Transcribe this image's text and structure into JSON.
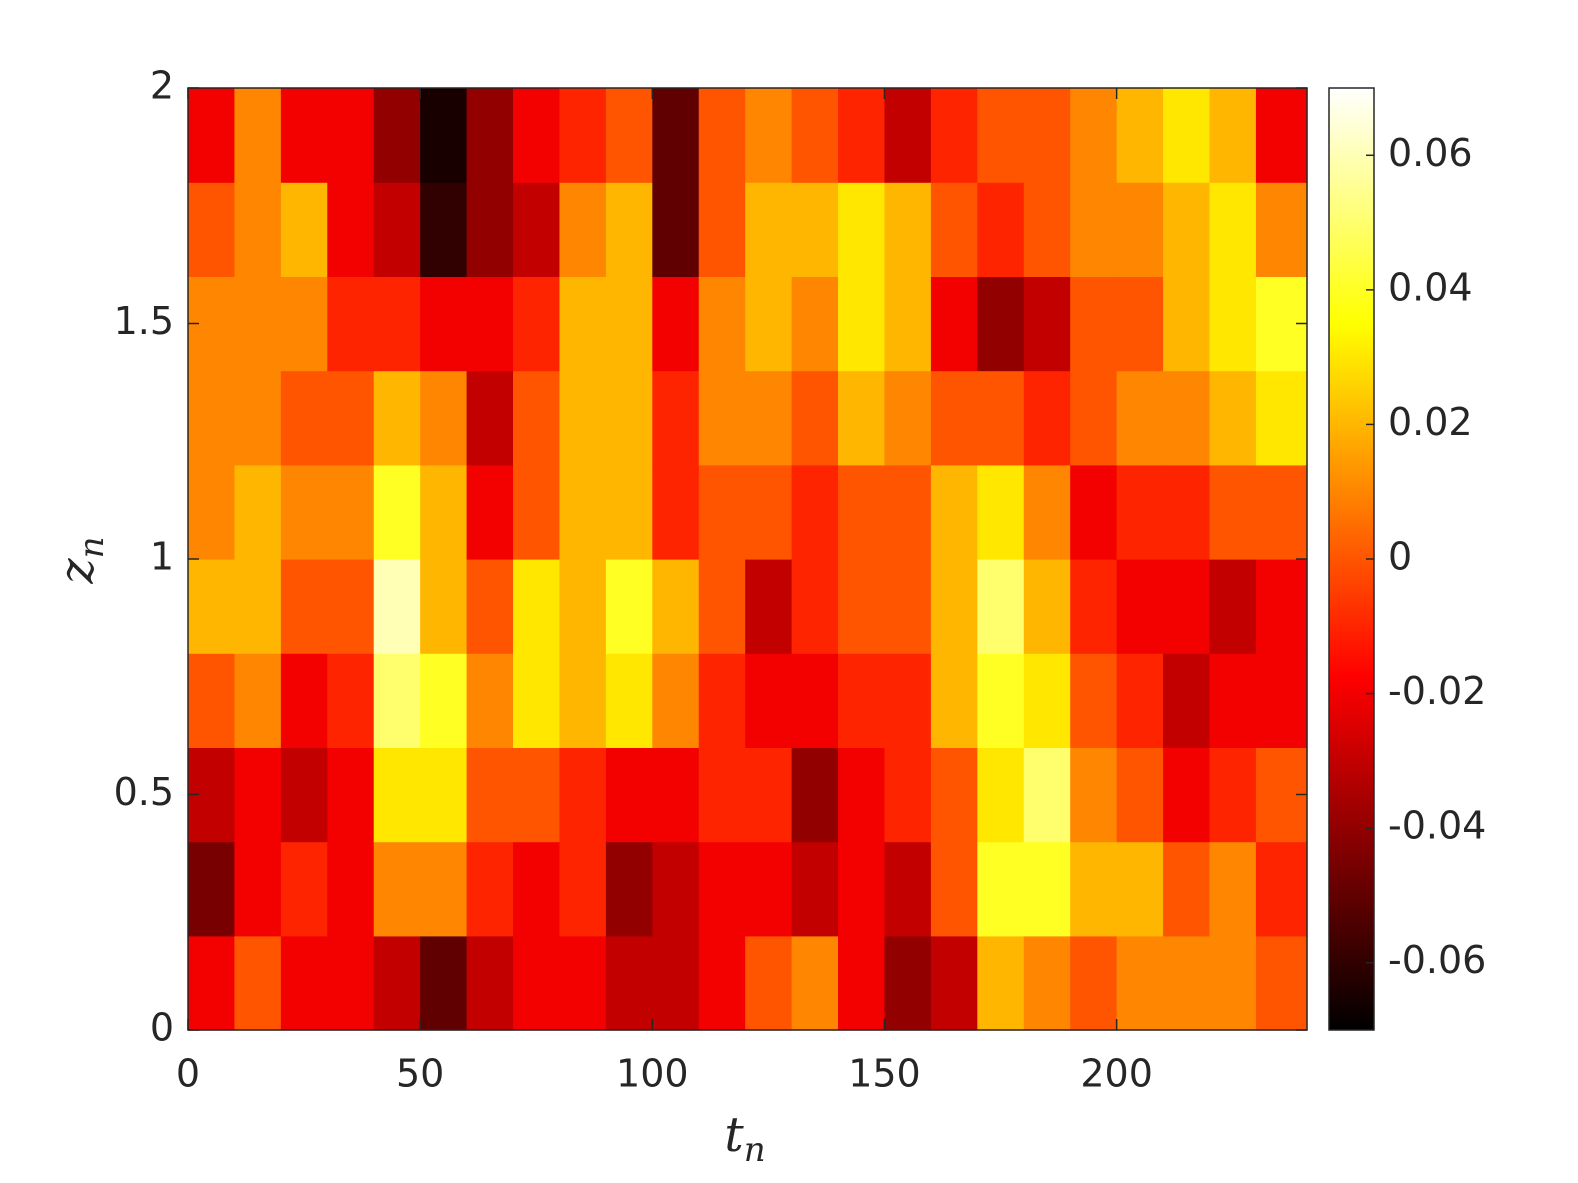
{
  "chart_data": {
    "type": "heatmap",
    "x_label": {
      "text": "t",
      "subscript": "n"
    },
    "y_label": {
      "text": "z",
      "subscript": "n"
    },
    "colormap": "hot",
    "x_bins": [
      0,
      10,
      20,
      30,
      40,
      50,
      60,
      70,
      80,
      90,
      100,
      110,
      120,
      130,
      140,
      150,
      160,
      170,
      180,
      190,
      200,
      210,
      220,
      230,
      241
    ],
    "y_bins": [
      0,
      0.2,
      0.4,
      0.6,
      0.8,
      1.0,
      1.2,
      1.4,
      1.6,
      1.8,
      2
    ],
    "values": [
      [
        -0.02,
        -0.045,
        -0.03,
        0.0,
        0.02,
        0.01,
        0.01,
        0.01,
        0.0,
        -0.02
      ],
      [
        0.0,
        -0.02,
        -0.02,
        0.01,
        0.02,
        0.02,
        0.01,
        0.01,
        0.01,
        0.01
      ],
      [
        -0.02,
        -0.01,
        -0.03,
        -0.02,
        0.0,
        0.01,
        0.0,
        0.01,
        0.02,
        -0.02
      ],
      [
        -0.02,
        -0.02,
        -0.02,
        -0.01,
        0.0,
        0.01,
        0.0,
        -0.01,
        -0.02,
        -0.02
      ],
      [
        -0.03,
        0.01,
        0.03,
        0.05,
        0.06,
        0.04,
        0.02,
        -0.01,
        -0.03,
        -0.04
      ],
      [
        -0.05,
        0.01,
        0.03,
        0.04,
        0.02,
        0.02,
        0.01,
        -0.02,
        -0.06,
        -0.065
      ],
      [
        -0.03,
        -0.01,
        0.0,
        0.01,
        0.0,
        -0.02,
        -0.03,
        -0.02,
        -0.04,
        -0.04
      ],
      [
        -0.02,
        -0.02,
        0.0,
        0.03,
        0.03,
        0.0,
        0.0,
        -0.01,
        -0.03,
        -0.02
      ],
      [
        -0.02,
        -0.01,
        -0.01,
        0.02,
        0.02,
        0.02,
        0.02,
        0.02,
        0.01,
        -0.01
      ],
      [
        -0.03,
        -0.04,
        -0.02,
        0.03,
        0.04,
        0.02,
        0.02,
        0.02,
        0.02,
        0.0
      ],
      [
        -0.03,
        -0.03,
        -0.02,
        0.01,
        0.02,
        -0.01,
        -0.01,
        -0.02,
        -0.05,
        -0.05
      ],
      [
        -0.02,
        -0.02,
        -0.01,
        -0.01,
        0.0,
        0.0,
        0.01,
        0.01,
        0.0,
        0.0
      ],
      [
        0.0,
        -0.02,
        -0.01,
        -0.02,
        -0.03,
        0.0,
        0.01,
        0.02,
        0.02,
        0.01
      ],
      [
        0.01,
        -0.03,
        -0.04,
        -0.02,
        -0.01,
        -0.01,
        0.0,
        0.01,
        0.02,
        0.0
      ],
      [
        -0.02,
        -0.02,
        -0.02,
        -0.01,
        0.0,
        0.0,
        0.02,
        0.03,
        0.03,
        -0.01
      ],
      [
        -0.04,
        -0.03,
        -0.01,
        -0.01,
        0.0,
        0.0,
        0.01,
        0.02,
        0.02,
        -0.03
      ],
      [
        -0.03,
        0.0,
        0.0,
        0.02,
        0.02,
        0.02,
        0.0,
        -0.02,
        0.0,
        -0.01
      ],
      [
        0.02,
        0.04,
        0.03,
        0.04,
        0.05,
        0.03,
        0.0,
        -0.04,
        -0.01,
        0.0
      ],
      [
        0.01,
        0.04,
        0.05,
        0.03,
        0.02,
        0.01,
        -0.01,
        -0.03,
        0.0,
        0.0
      ],
      [
        0.0,
        0.02,
        0.01,
        0.0,
        -0.01,
        -0.02,
        0.0,
        0.0,
        0.01,
        0.01
      ],
      [
        0.01,
        0.02,
        0.0,
        -0.01,
        -0.02,
        -0.01,
        0.01,
        0.0,
        0.01,
        0.02
      ],
      [
        0.01,
        0.0,
        -0.02,
        -0.03,
        -0.02,
        -0.01,
        0.01,
        0.02,
        0.02,
        0.03
      ],
      [
        0.01,
        0.01,
        -0.01,
        -0.02,
        -0.03,
        0.0,
        0.02,
        0.03,
        0.03,
        0.02
      ],
      [
        0.0,
        -0.01,
        0.0,
        -0.02,
        -0.02,
        0.0,
        0.03,
        0.04,
        0.01,
        -0.02
      ]
    ],
    "xlim": [
      0,
      241
    ],
    "xticks": [
      0,
      50,
      100,
      150,
      200
    ],
    "ylim": [
      0,
      2
    ],
    "yticks": [
      0,
      0.5,
      1,
      1.5,
      2
    ],
    "clim": [
      -0.07,
      0.07
    ],
    "cticks": [
      -0.06,
      -0.04,
      -0.02,
      0,
      0.02,
      0.04,
      0.06
    ]
  }
}
